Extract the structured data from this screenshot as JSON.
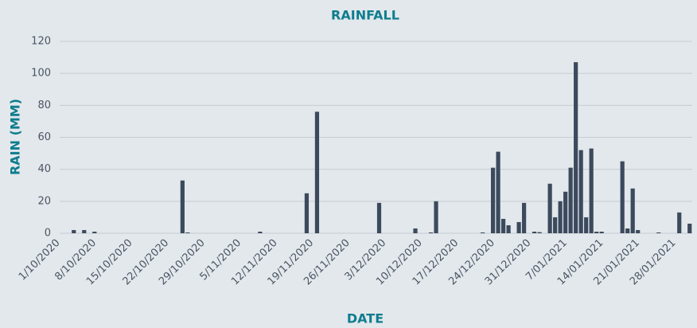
{
  "chart_data": {
    "type": "bar",
    "title": "RAINFALL",
    "x_label": "DATE",
    "y_label": "RAIN (MM)",
    "categories": [
      "1/10/2020",
      null,
      null,
      null,
      null,
      null,
      null,
      "8/10/2020",
      null,
      null,
      null,
      null,
      null,
      null,
      "15/10/2020",
      null,
      null,
      null,
      null,
      null,
      null,
      "22/10/2020",
      null,
      null,
      null,
      null,
      null,
      null,
      "29/10/2020",
      null,
      null,
      null,
      null,
      null,
      null,
      "5/11/2020",
      null,
      null,
      null,
      null,
      null,
      null,
      "12/11/2020",
      null,
      null,
      null,
      null,
      null,
      null,
      "19/11/2020",
      null,
      null,
      null,
      null,
      null,
      null,
      "26/11/2020",
      null,
      null,
      null,
      null,
      null,
      null,
      "3/12/2020",
      null,
      null,
      null,
      null,
      null,
      null,
      "10/12/2020",
      null,
      null,
      null,
      null,
      null,
      null,
      "17/12/2020",
      null,
      null,
      null,
      null,
      null,
      null,
      "24/12/2020",
      null,
      null,
      null,
      null,
      null,
      null,
      "31/12/2020",
      null,
      null,
      null,
      null,
      null,
      null,
      "7/01/2021",
      null,
      null,
      null,
      null,
      null,
      null,
      "14/01/2021",
      null,
      null,
      null,
      null,
      null,
      null,
      "21/01/2021",
      null,
      null,
      null,
      null,
      null,
      null,
      "28/01/2021",
      null,
      null,
      null
    ],
    "values": [
      0,
      0,
      0,
      2,
      0,
      2,
      0,
      1,
      0,
      0,
      0,
      0,
      0,
      0,
      0,
      0,
      0,
      0,
      0,
      0,
      0,
      0,
      0,
      0,
      33,
      0.5,
      0,
      0,
      0,
      0,
      0,
      0,
      0,
      0,
      0,
      0,
      0,
      0,
      0,
      1,
      0,
      0,
      0,
      0,
      0,
      0,
      0,
      0,
      25,
      0,
      76,
      0,
      0,
      0,
      0,
      0,
      0,
      0,
      0,
      0,
      0,
      0,
      19,
      0,
      0,
      0,
      0,
      0,
      0,
      3,
      0,
      0,
      0.5,
      20,
      0,
      0,
      0,
      0,
      0,
      0,
      0,
      0,
      0.5,
      0,
      41,
      51,
      9,
      5,
      0,
      7,
      19,
      0,
      1,
      0.7,
      0,
      31,
      10,
      20,
      26,
      41,
      107,
      52,
      10,
      53,
      1,
      1,
      0,
      0,
      0,
      45,
      3,
      28,
      2,
      0,
      0,
      0,
      0.5,
      0,
      0,
      0,
      13,
      0,
      6
    ],
    "color": "#3b4a5c",
    "ylim": [
      0,
      120
    ],
    "yticks": [
      0,
      20,
      40,
      60,
      80,
      100,
      120
    ],
    "grid": true
  }
}
